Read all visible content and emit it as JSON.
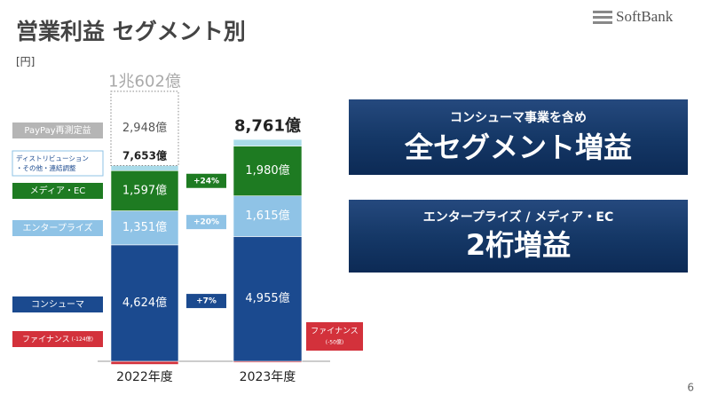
{
  "title": "営業利益 セグメント別",
  "unit": "[円]",
  "logo": "SoftBank",
  "page_number": "6",
  "callouts": [
    {
      "subtitle": "コンシューマ事業を含め",
      "headline": "全セグメント増益"
    },
    {
      "subtitle": "エンタープライズ / メディア・EC",
      "headline": "2桁増益"
    }
  ],
  "chart_data": {
    "type": "bar",
    "stacked": true,
    "categories": [
      "2022年度",
      "2023年度"
    ],
    "series": [
      {
        "name": "ファイナンス",
        "color": "#d3313b",
        "values": [
          -124,
          -50
        ],
        "value_labels": [
          "(-124億)",
          "(-50億)"
        ]
      },
      {
        "name": "コンシューマ",
        "color": "#1b4a8f",
        "values": [
          4624,
          4955
        ],
        "value_labels": [
          "4,624億",
          "4,955億"
        ],
        "growth_label": "+7%"
      },
      {
        "name": "エンタープライズ",
        "color": "#8fc3e6",
        "values": [
          1351,
          1615
        ],
        "value_labels": [
          "1,351億",
          "1,615億"
        ],
        "growth_label": "+20%"
      },
      {
        "name": "メディア・EC",
        "color": "#1e7b22",
        "values": [
          1597,
          1980
        ],
        "value_labels": [
          "1,597億",
          "1,980億"
        ],
        "growth_label": "+24%"
      },
      {
        "name": "ディストリビューション・その他・連結調整",
        "color": "#a9dbe9",
        "values": [
          205,
          261
        ]
      },
      {
        "name": "PayPay再測定益",
        "color": "#ffffff",
        "values": [
          2948,
          null
        ],
        "value_labels": [
          "2,948億",
          null
        ]
      }
    ],
    "totals": {
      "values": [
        7653,
        8761
      ],
      "value_labels": [
        "7,653億",
        "8,761億"
      ]
    },
    "total_incl_paypay": {
      "value": 10602,
      "label": "1兆602億"
    }
  }
}
